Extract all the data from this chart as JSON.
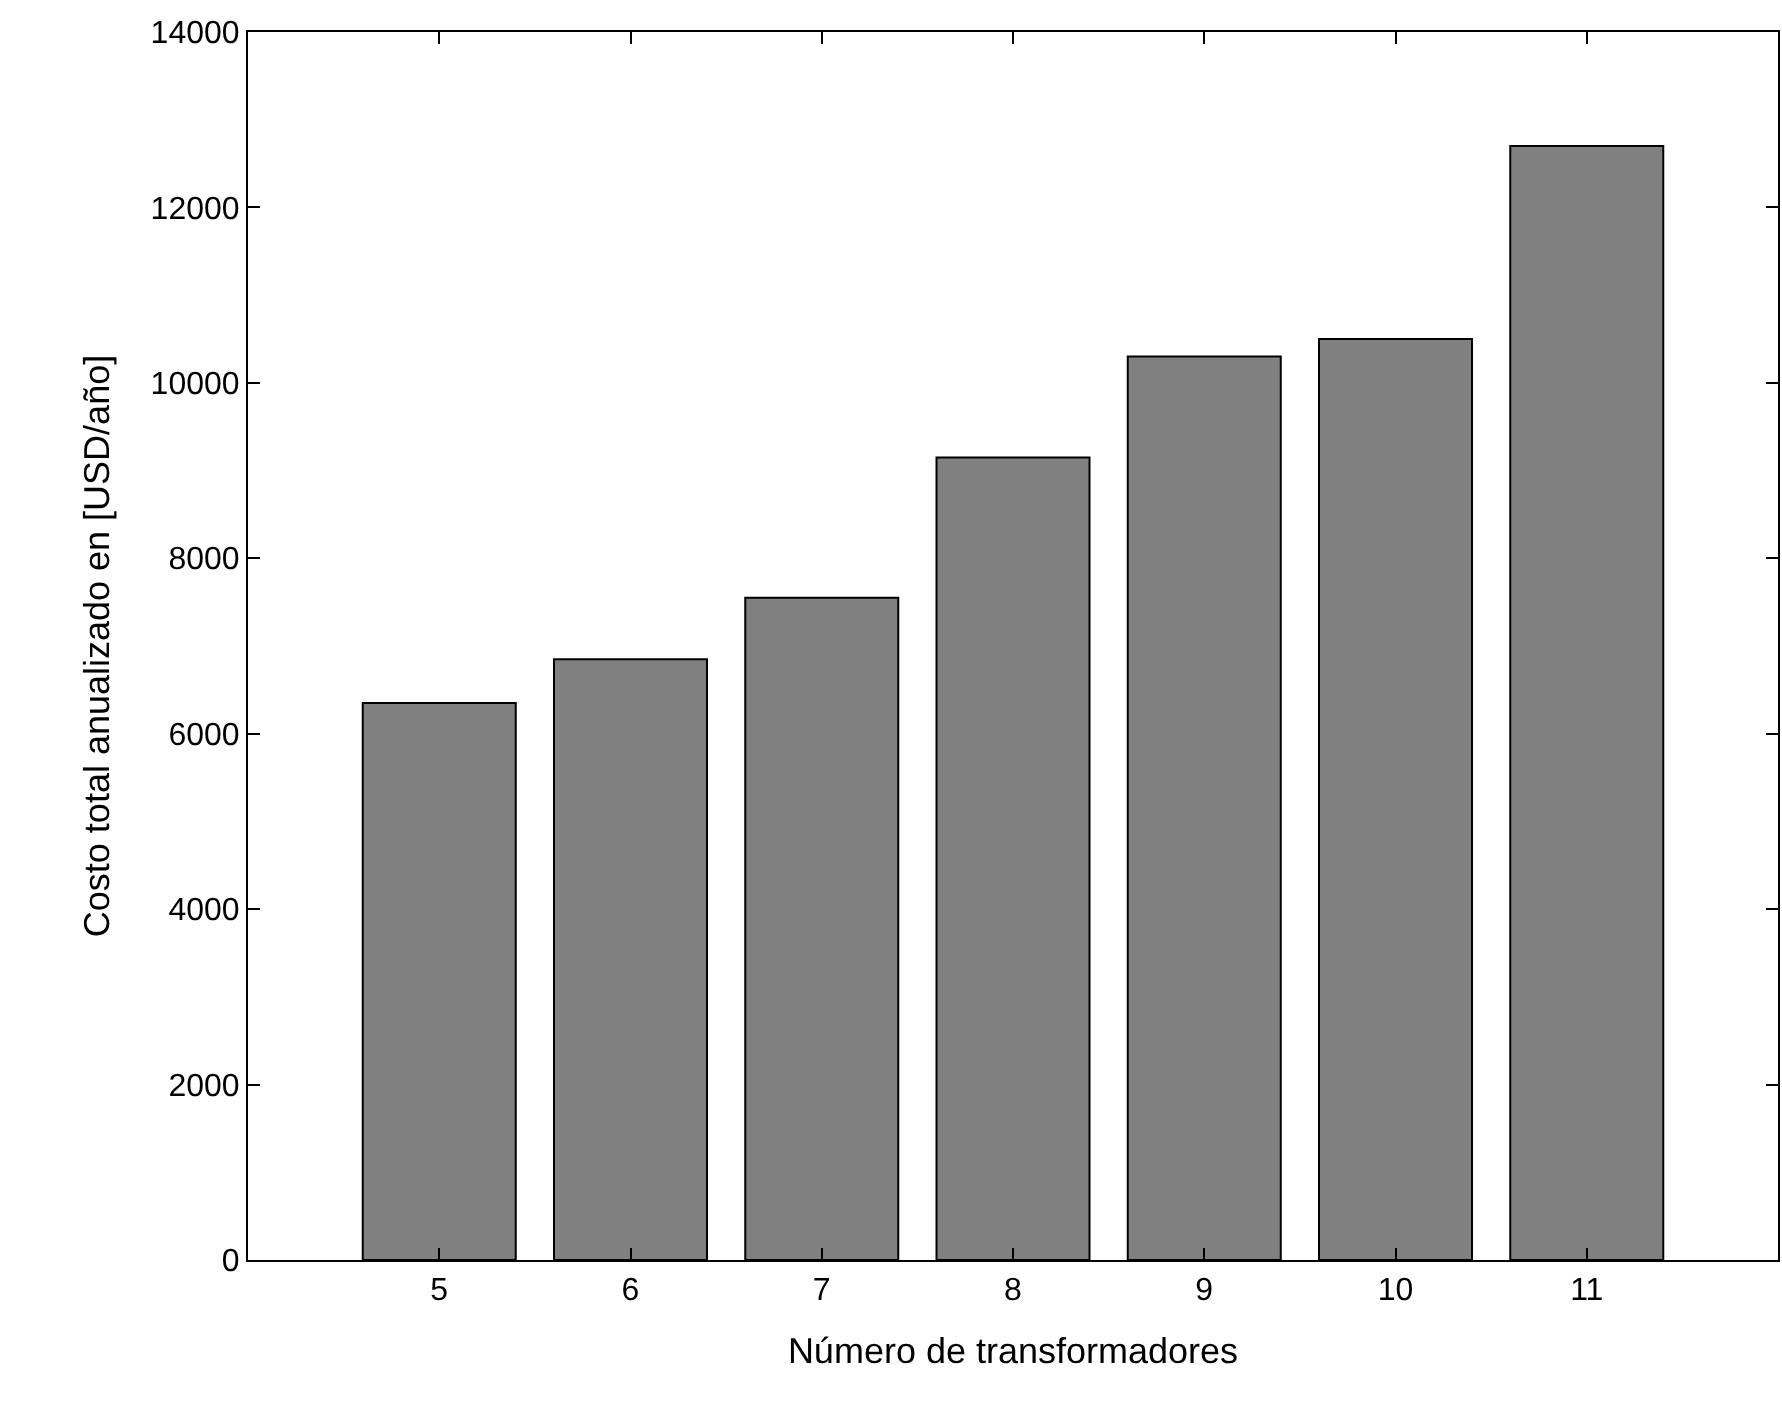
{
  "chart_data": {
    "type": "bar",
    "xlabel": "Número de transformadores",
    "ylabel": "Costo total anualizado en [USD/año]",
    "x": [
      5,
      6,
      7,
      8,
      9,
      10,
      11
    ],
    "values": [
      6350,
      6850,
      7550,
      9150,
      10300,
      10500,
      12700
    ],
    "color": "#808080",
    "xlim": [
      4,
      12
    ],
    "xticks": [
      5,
      6,
      7,
      8,
      9,
      10,
      11
    ],
    "ylim": [
      0,
      14000
    ],
    "yticks": [
      0,
      2000,
      4000,
      6000,
      8000,
      10000,
      12000,
      14000
    ]
  }
}
